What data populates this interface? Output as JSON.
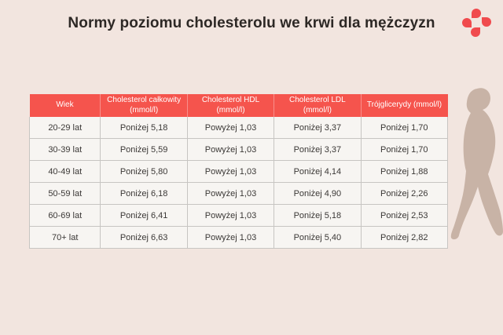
{
  "title": "Normy poziomu cholesterolu we krwi dla mężczyzn",
  "logo": {
    "name": "four-petal-brand-mark",
    "color": "#f04a4d"
  },
  "colors": {
    "background": "#f2e5df",
    "table_header": "#f5544d",
    "table_cell": "#f7f5f2",
    "cell_border": "#c7c5c2",
    "title_text": "#2d2825",
    "cell_text": "#3b3836",
    "silhouette": "#c8b3a6"
  },
  "chart_data": {
    "type": "table",
    "title": "Normy poziomu cholesterolu we krwi dla mężczyzn",
    "columns": [
      "Wiek",
      "Cholesterol całkowity (mmol/l)",
      "Cholesterol HDL (mmol/l)",
      "Cholesterol LDL (mmol/l)",
      "Trójglicerydy (mmol/l)"
    ],
    "rows": [
      [
        "20-29 lat",
        "Poniżej 5,18",
        "Powyżej 1,03",
        "Poniżej 3,37",
        "Poniżej 1,70"
      ],
      [
        "30-39 lat",
        "Poniżej 5,59",
        "Powyżej 1,03",
        "Poniżej 3,37",
        "Poniżej 1,70"
      ],
      [
        "40-49 lat",
        "Poniżej 5,80",
        "Powyżej 1,03",
        "Poniżej 4,14",
        "Poniżej 1,88"
      ],
      [
        "50-59 lat",
        "Poniżej 6,18",
        "Powyżej 1,03",
        "Poniżej 4,90",
        "Poniżej 2,26"
      ],
      [
        "60-69 lat",
        "Poniżej 6,41",
        "Powyżej 1,03",
        "Poniżej 5,18",
        "Poniżej 2,53"
      ],
      [
        "70+ lat",
        "Poniżej 6,63",
        "Powyżej 1,03",
        "Poniżej 5,40",
        "Poniżej 2,82"
      ]
    ]
  }
}
